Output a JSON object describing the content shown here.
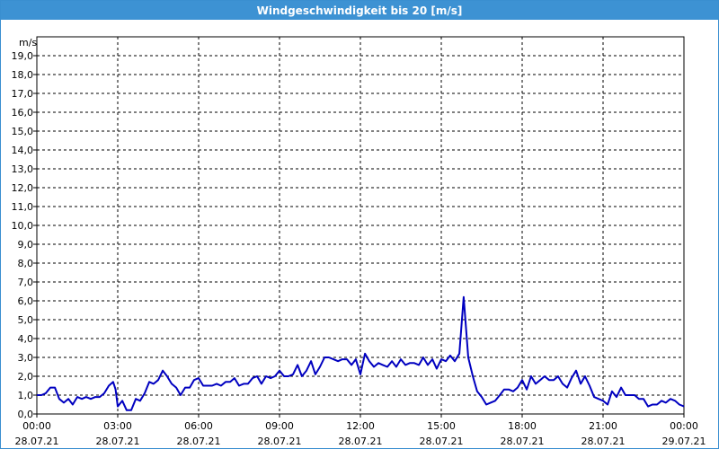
{
  "window": {
    "title": "Windgeschwindigkeit bis 20 [m/s]"
  },
  "chart_data": {
    "type": "line",
    "title": "Windgeschwindigkeit bis 20 [m/s]",
    "ylabel": "m/s",
    "xlabel": "",
    "ylim": [
      0,
      20
    ],
    "xlim_hours": [
      0,
      24
    ],
    "grid": true,
    "y_ticks": [
      "0,0",
      "1,0",
      "2,0",
      "3,0",
      "4,0",
      "5,0",
      "6,0",
      "7,0",
      "8,0",
      "9,0",
      "10,0",
      "11,0",
      "12,0",
      "13,0",
      "14,0",
      "15,0",
      "16,0",
      "17,0",
      "18,0",
      "19,0"
    ],
    "x_ticks": [
      {
        "time": "00:00",
        "date": "28.07.21"
      },
      {
        "time": "03:00",
        "date": "28.07.21"
      },
      {
        "time": "06:00",
        "date": "28.07.21"
      },
      {
        "time": "09:00",
        "date": "28.07.21"
      },
      {
        "time": "12:00",
        "date": "28.07.21"
      },
      {
        "time": "15:00",
        "date": "28.07.21"
      },
      {
        "time": "18:00",
        "date": "28.07.21"
      },
      {
        "time": "21:00",
        "date": "28.07.21"
      },
      {
        "time": "00:00",
        "date": "29.07.21"
      }
    ],
    "series": [
      {
        "color": "#0000c0",
        "points": [
          [
            0.0,
            1.0
          ],
          [
            0.17,
            1.0
          ],
          [
            0.33,
            1.1
          ],
          [
            0.5,
            1.4
          ],
          [
            0.67,
            1.4
          ],
          [
            0.83,
            0.8
          ],
          [
            1.0,
            0.6
          ],
          [
            1.17,
            0.8
          ],
          [
            1.33,
            0.5
          ],
          [
            1.5,
            0.9
          ],
          [
            1.67,
            0.8
          ],
          [
            1.83,
            0.9
          ],
          [
            2.0,
            0.8
          ],
          [
            2.17,
            0.9
          ],
          [
            2.33,
            0.9
          ],
          [
            2.5,
            1.1
          ],
          [
            2.67,
            1.5
          ],
          [
            2.83,
            1.7
          ],
          [
            2.92,
            1.3
          ],
          [
            3.0,
            0.4
          ],
          [
            3.17,
            0.7
          ],
          [
            3.33,
            0.2
          ],
          [
            3.5,
            0.2
          ],
          [
            3.67,
            0.8
          ],
          [
            3.83,
            0.7
          ],
          [
            4.0,
            1.1
          ],
          [
            4.17,
            1.7
          ],
          [
            4.33,
            1.6
          ],
          [
            4.5,
            1.8
          ],
          [
            4.67,
            2.3
          ],
          [
            4.83,
            2.0
          ],
          [
            5.0,
            1.6
          ],
          [
            5.17,
            1.4
          ],
          [
            5.33,
            1.0
          ],
          [
            5.5,
            1.4
          ],
          [
            5.67,
            1.4
          ],
          [
            5.83,
            1.8
          ],
          [
            6.0,
            1.9
          ],
          [
            6.17,
            1.5
          ],
          [
            6.33,
            1.5
          ],
          [
            6.5,
            1.5
          ],
          [
            6.67,
            1.6
          ],
          [
            6.83,
            1.5
          ],
          [
            7.0,
            1.7
          ],
          [
            7.17,
            1.7
          ],
          [
            7.33,
            1.9
          ],
          [
            7.5,
            1.5
          ],
          [
            7.67,
            1.6
          ],
          [
            7.83,
            1.6
          ],
          [
            8.0,
            1.9
          ],
          [
            8.17,
            2.0
          ],
          [
            8.33,
            1.6
          ],
          [
            8.5,
            2.0
          ],
          [
            8.67,
            1.9
          ],
          [
            8.83,
            2.0
          ],
          [
            9.0,
            2.3
          ],
          [
            9.17,
            2.0
          ],
          [
            9.33,
            2.0
          ],
          [
            9.5,
            2.1
          ],
          [
            9.67,
            2.6
          ],
          [
            9.83,
            2.0
          ],
          [
            10.0,
            2.3
          ],
          [
            10.17,
            2.8
          ],
          [
            10.33,
            2.1
          ],
          [
            10.5,
            2.5
          ],
          [
            10.67,
            3.0
          ],
          [
            10.83,
            3.0
          ],
          [
            11.0,
            2.9
          ],
          [
            11.17,
            2.8
          ],
          [
            11.33,
            2.9
          ],
          [
            11.5,
            2.9
          ],
          [
            11.67,
            2.6
          ],
          [
            11.83,
            2.9
          ],
          [
            12.0,
            2.1
          ],
          [
            12.17,
            3.2
          ],
          [
            12.33,
            2.8
          ],
          [
            12.5,
            2.5
          ],
          [
            12.67,
            2.7
          ],
          [
            12.83,
            2.6
          ],
          [
            13.0,
            2.5
          ],
          [
            13.17,
            2.8
          ],
          [
            13.33,
            2.5
          ],
          [
            13.5,
            2.9
          ],
          [
            13.67,
            2.6
          ],
          [
            13.83,
            2.7
          ],
          [
            14.0,
            2.7
          ],
          [
            14.17,
            2.6
          ],
          [
            14.33,
            3.0
          ],
          [
            14.5,
            2.6
          ],
          [
            14.67,
            2.9
          ],
          [
            14.83,
            2.4
          ],
          [
            15.0,
            2.9
          ],
          [
            15.17,
            2.8
          ],
          [
            15.33,
            3.1
          ],
          [
            15.5,
            2.8
          ],
          [
            15.67,
            3.2
          ],
          [
            15.83,
            6.2
          ],
          [
            15.92,
            4.5
          ],
          [
            16.0,
            3.0
          ],
          [
            16.17,
            2.0
          ],
          [
            16.33,
            1.2
          ],
          [
            16.5,
            0.9
          ],
          [
            16.67,
            0.5
          ],
          [
            16.83,
            0.6
          ],
          [
            17.0,
            0.7
          ],
          [
            17.17,
            1.0
          ],
          [
            17.33,
            1.3
          ],
          [
            17.5,
            1.3
          ],
          [
            17.67,
            1.2
          ],
          [
            17.83,
            1.4
          ],
          [
            18.0,
            1.8
          ],
          [
            18.17,
            1.3
          ],
          [
            18.33,
            2.0
          ],
          [
            18.5,
            1.6
          ],
          [
            18.67,
            1.8
          ],
          [
            18.83,
            2.0
          ],
          [
            19.0,
            1.8
          ],
          [
            19.17,
            1.8
          ],
          [
            19.33,
            2.0
          ],
          [
            19.5,
            1.6
          ],
          [
            19.67,
            1.4
          ],
          [
            19.83,
            1.9
          ],
          [
            20.0,
            2.3
          ],
          [
            20.17,
            1.6
          ],
          [
            20.33,
            2.0
          ],
          [
            20.5,
            1.5
          ],
          [
            20.67,
            0.9
          ],
          [
            20.83,
            0.8
          ],
          [
            21.0,
            0.7
          ],
          [
            21.17,
            0.5
          ],
          [
            21.33,
            1.2
          ],
          [
            21.5,
            0.9
          ],
          [
            21.67,
            1.4
          ],
          [
            21.83,
            1.0
          ],
          [
            22.0,
            1.0
          ],
          [
            22.17,
            1.0
          ],
          [
            22.33,
            0.8
          ],
          [
            22.5,
            0.8
          ],
          [
            22.67,
            0.4
          ],
          [
            22.83,
            0.5
          ],
          [
            23.0,
            0.5
          ],
          [
            23.17,
            0.7
          ],
          [
            23.33,
            0.6
          ],
          [
            23.5,
            0.8
          ],
          [
            23.67,
            0.7
          ],
          [
            23.83,
            0.5
          ],
          [
            24.0,
            0.4
          ]
        ]
      }
    ]
  }
}
